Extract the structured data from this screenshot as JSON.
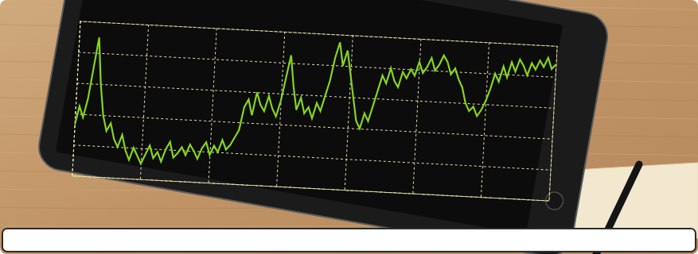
{
  "chart_data": {
    "type": "line",
    "values": [
      32,
      45,
      38,
      50,
      70,
      90,
      60,
      40,
      30,
      35,
      25,
      20,
      28,
      18,
      12,
      20,
      15,
      10,
      16,
      22,
      14,
      18,
      12,
      20,
      25,
      15,
      18,
      22,
      17,
      24,
      20,
      15,
      22,
      26,
      18,
      24,
      20,
      28,
      22,
      25,
      30,
      35,
      50,
      55,
      45,
      60,
      52,
      48,
      58,
      50,
      45,
      55,
      70,
      85,
      65,
      50,
      58,
      48,
      52,
      45,
      55,
      50,
      60,
      70,
      85,
      95,
      80,
      90,
      75,
      60,
      45,
      40,
      50,
      45,
      55,
      65,
      75,
      70,
      80,
      72,
      68,
      78,
      74,
      80,
      76,
      85,
      78,
      82,
      88,
      80,
      84,
      90,
      86,
      78,
      82,
      75,
      70,
      60,
      55,
      58,
      52,
      56,
      62,
      70,
      80,
      75,
      85,
      78,
      88,
      82,
      90,
      86,
      80,
      88,
      84,
      90,
      86,
      92,
      85,
      88
    ],
    "color": "#86d41c",
    "xlim": [
      0,
      119
    ],
    "xticks": [
      0,
      17,
      34,
      51,
      68,
      85,
      102,
      119
    ],
    "ylim": [
      0,
      100
    ],
    "yticks": [
      0,
      20,
      40,
      60,
      80,
      100
    ],
    "grid": true,
    "tick_labels": false
  }
}
